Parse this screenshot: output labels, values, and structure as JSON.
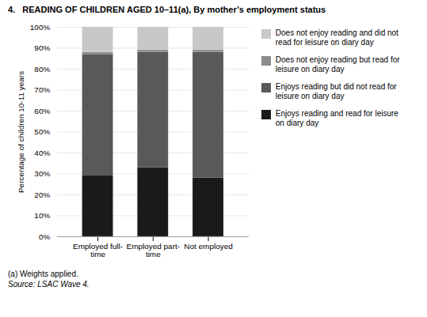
{
  "chart_data": {
    "type": "bar",
    "stacked": true,
    "title": "4.   READING OF CHILDREN AGED 10–11(a), By mother’s employment status",
    "categories": [
      "Employed full-\ntime",
      "Employed part-\ntime",
      "Not employed"
    ],
    "series": [
      {
        "name": "Enjoys reading and read for leisure\non diary day",
        "color": "#1a1a1a",
        "values": [
          29,
          33,
          28
        ]
      },
      {
        "name": "Enjoys reading but did not read for\nleisure on diary day",
        "color": "#595959",
        "values": [
          58,
          55,
          60
        ]
      },
      {
        "name": "Does not enjoy reading but read for\nleisure on diary day",
        "color": "#8c8c8c",
        "values": [
          1,
          1,
          1
        ]
      },
      {
        "name": "Does not enjoy reading and did not\nread for leisure on diary day",
        "color": "#c8c8c8",
        "values": [
          12,
          11,
          11
        ]
      }
    ],
    "ylabel": "Percentage of children 10-11 years",
    "ylim": [
      0,
      100
    ],
    "yticks": [
      {
        "value": 0,
        "label": "0%"
      },
      {
        "value": 10,
        "label": "10%"
      },
      {
        "value": 20,
        "label": "20%"
      },
      {
        "value": 30,
        "label": "30%"
      },
      {
        "value": 40,
        "label": "40%"
      },
      {
        "value": 50,
        "label": "50%"
      },
      {
        "value": 60,
        "label": "60%"
      },
      {
        "value": 70,
        "label": "70%"
      },
      {
        "value": 80,
        "label": "80%"
      },
      {
        "value": 90,
        "label": "90%"
      },
      {
        "value": 100,
        "label": "100%"
      }
    ],
    "grid": true,
    "legend": "right",
    "footnotes": [
      "(a) Weights applied.",
      "Source: LSAC Wave 4."
    ]
  }
}
